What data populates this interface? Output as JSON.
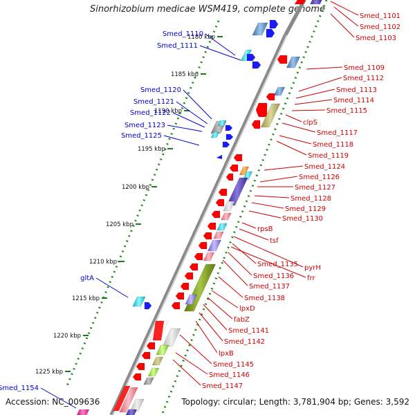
{
  "title": "Sinorhizobium medicae WSM419, complete genome",
  "footer": {
    "accession": "Accession: NC_009636",
    "summary": "Topology: circular; Length: 3,781,904 bp; Genes: 3,592"
  },
  "ticks": [
    "1180 kbp",
    "1185 kbp",
    "1190 kbp",
    "1195 kbp",
    "1200 kbp",
    "1205 kbp",
    "1210 kbp",
    "1215 kbp",
    "1220 kbp",
    "1225 kbp"
  ],
  "left_genes": [
    "Smed_1110",
    "Smed_1111",
    "Smed_1120",
    "Smed_1121",
    "Smed_1122",
    "Smed_1123",
    "Smed_1125",
    "gltA",
    "Smed_1154"
  ],
  "right_genes": [
    "Smed_1101",
    "Smed_1102",
    "Smed_1103",
    "Smed_1109",
    "Smed_1112",
    "Smed_1113",
    "Smed_1114",
    "Smed_1115",
    "clpS",
    "Smed_1117",
    "Smed_1118",
    "Smed_1119",
    "Smed_1124",
    "Smed_1126",
    "Smed_1127",
    "Smed_1128",
    "Smed_1129",
    "Smed_1130",
    "rpsB",
    "tsf",
    "pyrH",
    "Smed_1135",
    "frr",
    "Smed_1136",
    "Smed_1137",
    "Smed_1138",
    "lpxD",
    "fabZ",
    "Smed_1141",
    "Smed_1142",
    "lpxB",
    "Smed_1145",
    "Smed_1146",
    "Smed_1147"
  ],
  "colors": {
    "left_label": "#0000cc",
    "right_label": "#cc0000",
    "backbone": "#888888",
    "tick_mark": "#1a7a1a",
    "forward_cds": "#1a1aff",
    "reverse_cds": "#ff0000"
  }
}
